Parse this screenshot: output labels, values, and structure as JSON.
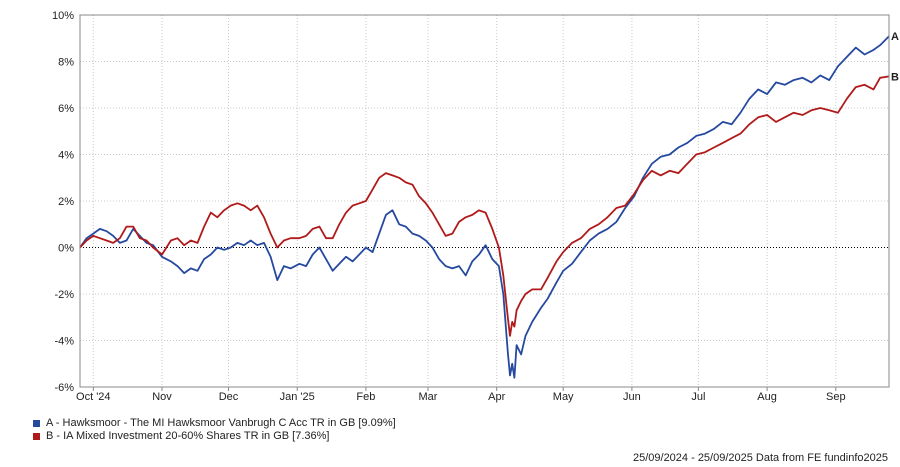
{
  "chart_data": {
    "type": "line",
    "ylim": [
      -6,
      10
    ],
    "y_ticks": [
      "10%",
      "8%",
      "6%",
      "4%",
      "2%",
      "0%",
      "-2%",
      "-4%",
      "-6%"
    ],
    "y_tick_values": [
      10,
      8,
      6,
      4,
      2,
      0,
      -2,
      -4,
      -6
    ],
    "x_range": [
      "2024-09-25",
      "2025-09-25"
    ],
    "x_ticks": [
      {
        "label": "Oct '24",
        "date": "2024-10-01"
      },
      {
        "label": "Nov",
        "date": "2024-11-01"
      },
      {
        "label": "Dec",
        "date": "2024-12-01"
      },
      {
        "label": "Jan '25",
        "date": "2025-01-01"
      },
      {
        "label": "Feb",
        "date": "2025-02-01"
      },
      {
        "label": "Mar",
        "date": "2025-03-01"
      },
      {
        "label": "Apr",
        "date": "2025-04-01"
      },
      {
        "label": "May",
        "date": "2025-05-01"
      },
      {
        "label": "Jun",
        "date": "2025-06-01"
      },
      {
        "label": "Jul",
        "date": "2025-07-01"
      },
      {
        "label": "Aug",
        "date": "2025-08-01"
      },
      {
        "label": "Sep",
        "date": "2025-09-01"
      }
    ],
    "grid": true,
    "zero_line": "dotted",
    "legend_position": "bottom-left",
    "series": [
      {
        "name": "A - Hawksmoor - The MI Hawksmoor Vanbrugh C Acc TR in GB [9.09%]",
        "end_label": "A",
        "color": "#2649a0",
        "points": [
          [
            "2024-09-25",
            0.0
          ],
          [
            "2024-09-28",
            0.4
          ],
          [
            "2024-10-01",
            0.6
          ],
          [
            "2024-10-04",
            0.8
          ],
          [
            "2024-10-07",
            0.7
          ],
          [
            "2024-10-10",
            0.5
          ],
          [
            "2024-10-13",
            0.2
          ],
          [
            "2024-10-16",
            0.3
          ],
          [
            "2024-10-19",
            0.8
          ],
          [
            "2024-10-22",
            0.5
          ],
          [
            "2024-10-25",
            0.2
          ],
          [
            "2024-10-28",
            0.1
          ],
          [
            "2024-11-01",
            -0.4
          ],
          [
            "2024-11-05",
            -0.6
          ],
          [
            "2024-11-08",
            -0.8
          ],
          [
            "2024-11-11",
            -1.1
          ],
          [
            "2024-11-14",
            -0.9
          ],
          [
            "2024-11-17",
            -1.0
          ],
          [
            "2024-11-20",
            -0.5
          ],
          [
            "2024-11-23",
            -0.3
          ],
          [
            "2024-11-26",
            0.0
          ],
          [
            "2024-11-29",
            -0.1
          ],
          [
            "2024-12-02",
            0.0
          ],
          [
            "2024-12-05",
            0.2
          ],
          [
            "2024-12-08",
            0.1
          ],
          [
            "2024-12-11",
            0.3
          ],
          [
            "2024-12-14",
            0.1
          ],
          [
            "2024-12-17",
            0.2
          ],
          [
            "2024-12-20",
            -0.4
          ],
          [
            "2024-12-23",
            -1.4
          ],
          [
            "2024-12-26",
            -0.8
          ],
          [
            "2024-12-29",
            -0.9
          ],
          [
            "2025-01-02",
            -0.7
          ],
          [
            "2025-01-05",
            -0.8
          ],
          [
            "2025-01-08",
            -0.3
          ],
          [
            "2025-01-11",
            0.0
          ],
          [
            "2025-01-14",
            -0.5
          ],
          [
            "2025-01-17",
            -1.0
          ],
          [
            "2025-01-20",
            -0.7
          ],
          [
            "2025-01-23",
            -0.4
          ],
          [
            "2025-01-26",
            -0.6
          ],
          [
            "2025-01-29",
            -0.3
          ],
          [
            "2025-02-01",
            0.0
          ],
          [
            "2025-02-04",
            -0.2
          ],
          [
            "2025-02-07",
            0.6
          ],
          [
            "2025-02-10",
            1.4
          ],
          [
            "2025-02-13",
            1.6
          ],
          [
            "2025-02-16",
            1.0
          ],
          [
            "2025-02-19",
            0.9
          ],
          [
            "2025-02-22",
            0.6
          ],
          [
            "2025-02-25",
            0.5
          ],
          [
            "2025-02-28",
            0.3
          ],
          [
            "2025-03-03",
            0.0
          ],
          [
            "2025-03-06",
            -0.5
          ],
          [
            "2025-03-09",
            -0.8
          ],
          [
            "2025-03-12",
            -0.9
          ],
          [
            "2025-03-15",
            -0.8
          ],
          [
            "2025-03-18",
            -1.2
          ],
          [
            "2025-03-21",
            -0.6
          ],
          [
            "2025-03-24",
            -0.3
          ],
          [
            "2025-03-27",
            0.1
          ],
          [
            "2025-03-30",
            -0.5
          ],
          [
            "2025-04-02",
            -0.8
          ],
          [
            "2025-04-04",
            -2.0
          ],
          [
            "2025-04-06",
            -4.5
          ],
          [
            "2025-04-07",
            -5.5
          ],
          [
            "2025-04-08",
            -5.0
          ],
          [
            "2025-04-09",
            -5.6
          ],
          [
            "2025-04-10",
            -4.2
          ],
          [
            "2025-04-12",
            -4.6
          ],
          [
            "2025-04-14",
            -3.8
          ],
          [
            "2025-04-17",
            -3.2
          ],
          [
            "2025-04-21",
            -2.6
          ],
          [
            "2025-04-24",
            -2.2
          ],
          [
            "2025-04-28",
            -1.5
          ],
          [
            "2025-05-01",
            -1.0
          ],
          [
            "2025-05-05",
            -0.7
          ],
          [
            "2025-05-09",
            -0.2
          ],
          [
            "2025-05-13",
            0.3
          ],
          [
            "2025-05-17",
            0.6
          ],
          [
            "2025-05-21",
            0.8
          ],
          [
            "2025-05-25",
            1.1
          ],
          [
            "2025-05-29",
            1.7
          ],
          [
            "2025-06-02",
            2.2
          ],
          [
            "2025-06-06",
            3.0
          ],
          [
            "2025-06-10",
            3.6
          ],
          [
            "2025-06-14",
            3.9
          ],
          [
            "2025-06-18",
            4.0
          ],
          [
            "2025-06-22",
            4.3
          ],
          [
            "2025-06-26",
            4.5
          ],
          [
            "2025-06-30",
            4.8
          ],
          [
            "2025-07-04",
            4.9
          ],
          [
            "2025-07-08",
            5.1
          ],
          [
            "2025-07-12",
            5.4
          ],
          [
            "2025-07-16",
            5.3
          ],
          [
            "2025-07-20",
            5.8
          ],
          [
            "2025-07-24",
            6.4
          ],
          [
            "2025-07-28",
            6.8
          ],
          [
            "2025-08-01",
            6.6
          ],
          [
            "2025-08-05",
            7.1
          ],
          [
            "2025-08-09",
            7.0
          ],
          [
            "2025-08-13",
            7.2
          ],
          [
            "2025-08-17",
            7.3
          ],
          [
            "2025-08-21",
            7.1
          ],
          [
            "2025-08-25",
            7.4
          ],
          [
            "2025-08-29",
            7.2
          ],
          [
            "2025-09-02",
            7.8
          ],
          [
            "2025-09-06",
            8.2
          ],
          [
            "2025-09-10",
            8.6
          ],
          [
            "2025-09-14",
            8.3
          ],
          [
            "2025-09-18",
            8.5
          ],
          [
            "2025-09-21",
            8.7
          ],
          [
            "2025-09-25",
            9.09
          ]
        ]
      },
      {
        "name": "B - IA Mixed Investment 20-60% Shares TR in GB [7.36%]",
        "end_label": "B",
        "color": "#b11a1a",
        "points": [
          [
            "2024-09-25",
            0.0
          ],
          [
            "2024-09-28",
            0.3
          ],
          [
            "2024-10-01",
            0.5
          ],
          [
            "2024-10-04",
            0.4
          ],
          [
            "2024-10-07",
            0.3
          ],
          [
            "2024-10-10",
            0.2
          ],
          [
            "2024-10-13",
            0.4
          ],
          [
            "2024-10-16",
            0.9
          ],
          [
            "2024-10-19",
            0.9
          ],
          [
            "2024-10-22",
            0.4
          ],
          [
            "2024-10-25",
            0.3
          ],
          [
            "2024-10-28",
            0.0
          ],
          [
            "2024-11-01",
            -0.3
          ],
          [
            "2024-11-05",
            0.3
          ],
          [
            "2024-11-08",
            0.4
          ],
          [
            "2024-11-11",
            0.1
          ],
          [
            "2024-11-14",
            0.3
          ],
          [
            "2024-11-17",
            0.2
          ],
          [
            "2024-11-20",
            0.9
          ],
          [
            "2024-11-23",
            1.5
          ],
          [
            "2024-11-26",
            1.3
          ],
          [
            "2024-11-29",
            1.6
          ],
          [
            "2024-12-02",
            1.8
          ],
          [
            "2024-12-05",
            1.9
          ],
          [
            "2024-12-08",
            1.8
          ],
          [
            "2024-12-11",
            1.6
          ],
          [
            "2024-12-14",
            1.8
          ],
          [
            "2024-12-17",
            1.3
          ],
          [
            "2024-12-20",
            0.6
          ],
          [
            "2024-12-23",
            0.0
          ],
          [
            "2024-12-26",
            0.3
          ],
          [
            "2024-12-29",
            0.4
          ],
          [
            "2025-01-02",
            0.4
          ],
          [
            "2025-01-05",
            0.5
          ],
          [
            "2025-01-08",
            0.8
          ],
          [
            "2025-01-11",
            0.9
          ],
          [
            "2025-01-14",
            0.4
          ],
          [
            "2025-01-17",
            0.4
          ],
          [
            "2025-01-20",
            1.0
          ],
          [
            "2025-01-23",
            1.5
          ],
          [
            "2025-01-26",
            1.8
          ],
          [
            "2025-01-29",
            1.9
          ],
          [
            "2025-02-01",
            2.0
          ],
          [
            "2025-02-04",
            2.5
          ],
          [
            "2025-02-07",
            3.0
          ],
          [
            "2025-02-10",
            3.2
          ],
          [
            "2025-02-13",
            3.1
          ],
          [
            "2025-02-16",
            3.0
          ],
          [
            "2025-02-19",
            2.8
          ],
          [
            "2025-02-22",
            2.7
          ],
          [
            "2025-02-25",
            2.2
          ],
          [
            "2025-02-28",
            1.9
          ],
          [
            "2025-03-03",
            1.5
          ],
          [
            "2025-03-06",
            1.0
          ],
          [
            "2025-03-09",
            0.5
          ],
          [
            "2025-03-12",
            0.6
          ],
          [
            "2025-03-15",
            1.1
          ],
          [
            "2025-03-18",
            1.3
          ],
          [
            "2025-03-21",
            1.4
          ],
          [
            "2025-03-24",
            1.6
          ],
          [
            "2025-03-27",
            1.5
          ],
          [
            "2025-03-30",
            0.8
          ],
          [
            "2025-04-02",
            0.0
          ],
          [
            "2025-04-04",
            -1.2
          ],
          [
            "2025-04-06",
            -3.0
          ],
          [
            "2025-04-07",
            -3.8
          ],
          [
            "2025-04-08",
            -3.2
          ],
          [
            "2025-04-09",
            -3.4
          ],
          [
            "2025-04-10",
            -2.7
          ],
          [
            "2025-04-12",
            -2.3
          ],
          [
            "2025-04-14",
            -2.0
          ],
          [
            "2025-04-17",
            -1.8
          ],
          [
            "2025-04-21",
            -1.8
          ],
          [
            "2025-04-24",
            -1.3
          ],
          [
            "2025-04-28",
            -0.6
          ],
          [
            "2025-05-01",
            -0.2
          ],
          [
            "2025-05-05",
            0.2
          ],
          [
            "2025-05-09",
            0.4
          ],
          [
            "2025-05-13",
            0.8
          ],
          [
            "2025-05-17",
            1.0
          ],
          [
            "2025-05-21",
            1.3
          ],
          [
            "2025-05-25",
            1.7
          ],
          [
            "2025-05-29",
            1.8
          ],
          [
            "2025-06-02",
            2.3
          ],
          [
            "2025-06-06",
            2.9
          ],
          [
            "2025-06-10",
            3.3
          ],
          [
            "2025-06-14",
            3.1
          ],
          [
            "2025-06-18",
            3.3
          ],
          [
            "2025-06-22",
            3.2
          ],
          [
            "2025-06-26",
            3.6
          ],
          [
            "2025-06-30",
            4.0
          ],
          [
            "2025-07-04",
            4.1
          ],
          [
            "2025-07-08",
            4.3
          ],
          [
            "2025-07-12",
            4.5
          ],
          [
            "2025-07-16",
            4.7
          ],
          [
            "2025-07-20",
            4.9
          ],
          [
            "2025-07-24",
            5.3
          ],
          [
            "2025-07-28",
            5.6
          ],
          [
            "2025-08-01",
            5.7
          ],
          [
            "2025-08-05",
            5.4
          ],
          [
            "2025-08-09",
            5.6
          ],
          [
            "2025-08-13",
            5.8
          ],
          [
            "2025-08-17",
            5.7
          ],
          [
            "2025-08-21",
            5.9
          ],
          [
            "2025-08-25",
            6.0
          ],
          [
            "2025-08-29",
            5.9
          ],
          [
            "2025-09-02",
            5.8
          ],
          [
            "2025-09-06",
            6.4
          ],
          [
            "2025-09-10",
            6.9
          ],
          [
            "2025-09-14",
            7.0
          ],
          [
            "2025-09-18",
            6.8
          ],
          [
            "2025-09-21",
            7.3
          ],
          [
            "2025-09-25",
            7.36
          ]
        ]
      }
    ]
  },
  "legend": [
    {
      "label": "A - Hawksmoor - The MI Hawksmoor Vanbrugh C Acc TR in GB [9.09%]",
      "color": "#2649a0"
    },
    {
      "label": "B - IA Mixed Investment 20-60% Shares TR in GB [7.36%]",
      "color": "#b11a1a"
    }
  ],
  "footer": "25/09/2024 - 25/09/2025 Data from FE fundinfo2025"
}
